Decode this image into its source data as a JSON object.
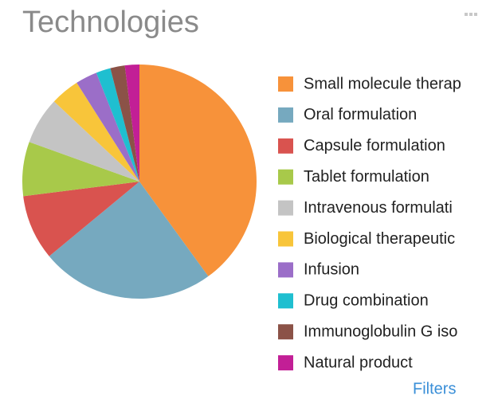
{
  "chart_data": {
    "type": "pie",
    "title": "Technologies",
    "categories": [
      "Small molecule therap",
      "Oral formulation",
      "Capsule formulation",
      "Tablet formulation",
      "Intravenous formulati",
      "Biological therapeutic",
      "Infusion",
      "Drug combination",
      "Immunoglobulin G iso",
      "Natural product"
    ],
    "values": [
      40,
      24,
      9,
      7.5,
      6.5,
      4,
      3,
      2,
      2,
      2
    ],
    "colors": [
      "#f7923a",
      "#76a9bf",
      "#d9534f",
      "#a8c94a",
      "#c4c4c4",
      "#f8c53a",
      "#9b6ec8",
      "#1fbfd0",
      "#8b5247",
      "#c21f96"
    ]
  },
  "filters_link": "Filters"
}
